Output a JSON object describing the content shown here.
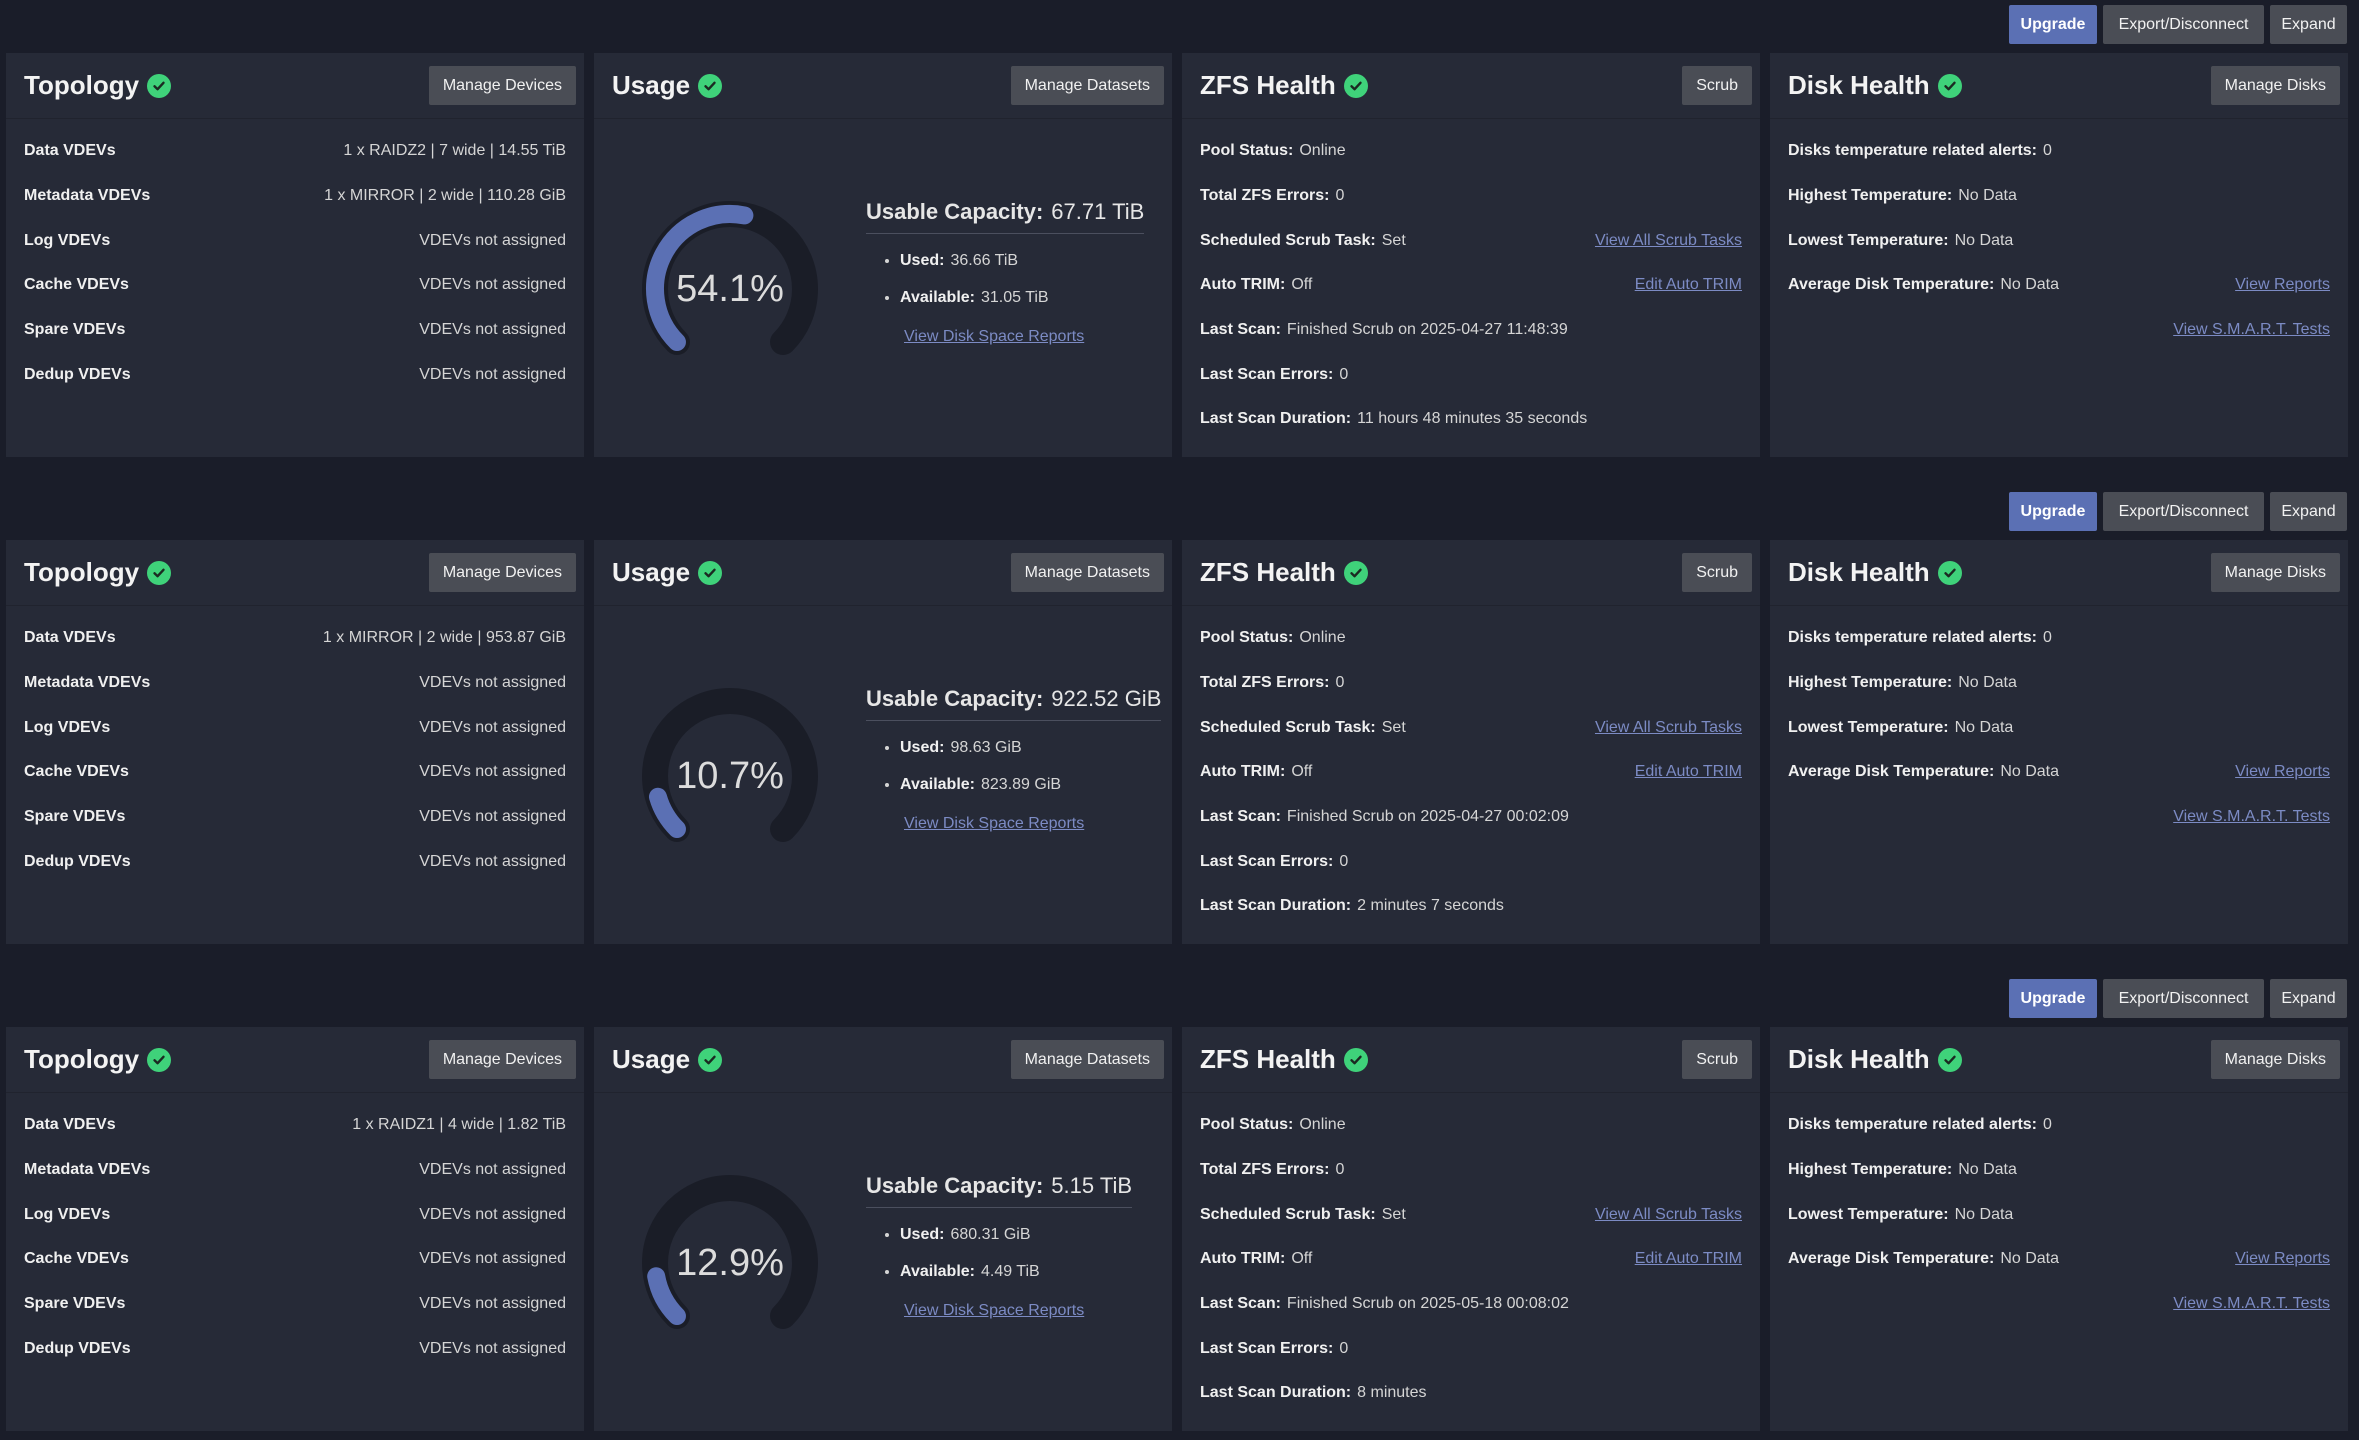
{
  "actions": {
    "upgrade": "Upgrade",
    "export": "Export/Disconnect",
    "expand": "Expand"
  },
  "topology": {
    "title": "Topology",
    "button": "Manage Devices",
    "labels": [
      "Data VDEVs",
      "Metadata VDEVs",
      "Log VDEVs",
      "Cache VDEVs",
      "Spare VDEVs",
      "Dedup VDEVs"
    ]
  },
  "usage": {
    "title": "Usage",
    "button": "Manage Datasets",
    "capacity_label": "Usable Capacity:",
    "used_label": "Used:",
    "available_label": "Available:",
    "reports_link": "View Disk Space Reports"
  },
  "zfs": {
    "title": "ZFS Health",
    "button": "Scrub",
    "pool_status_label": "Pool Status:",
    "errors_label": "Total ZFS Errors:",
    "scrub_task_label": "Scheduled Scrub Task:",
    "auto_trim_label": "Auto TRIM:",
    "last_scan_label": "Last Scan:",
    "last_scan_errors_label": "Last Scan Errors:",
    "duration_label": "Last Scan Duration:",
    "view_scrub_tasks": "View All Scrub Tasks",
    "edit_auto_trim": "Edit Auto TRIM"
  },
  "disk": {
    "title": "Disk Health",
    "button": "Manage Disks",
    "alerts_label": "Disks temperature related alerts:",
    "highest_label": "Highest Temperature:",
    "lowest_label": "Lowest Temperature:",
    "average_label": "Average Disk Temperature:",
    "view_reports": "View Reports",
    "view_smart": "View S.M.A.R.T. Tests"
  },
  "colors": {
    "accent": "#5b70b4",
    "ok": "#3fd27a",
    "card": "#262a37",
    "bg": "#1a1d29"
  },
  "pools": [
    {
      "topology": [
        "1 x RAIDZ2 | 7 wide | 14.55 TiB",
        "1 x MIRROR | 2 wide | 110.28 GiB",
        "VDEVs not assigned",
        "VDEVs not assigned",
        "VDEVs not assigned",
        "VDEVs not assigned"
      ],
      "usage": {
        "percent": 54.1,
        "percent_label": "54.1%",
        "capacity": "67.71 TiB",
        "used": "36.66 TiB",
        "available": "31.05 TiB"
      },
      "zfs": {
        "pool_status": "Online",
        "errors": "0",
        "scrub_task": "Set",
        "auto_trim": "Off",
        "last_scan": "Finished Scrub on 2025-04-27 11:48:39",
        "last_scan_errors": "0",
        "duration": "11 hours 48 minutes 35 seconds"
      },
      "disk": {
        "alerts": "0",
        "highest": "No Data",
        "lowest": "No Data",
        "average": "No Data"
      }
    },
    {
      "topology": [
        "1 x MIRROR | 2 wide | 953.87 GiB",
        "VDEVs not assigned",
        "VDEVs not assigned",
        "VDEVs not assigned",
        "VDEVs not assigned",
        "VDEVs not assigned"
      ],
      "usage": {
        "percent": 10.7,
        "percent_label": "10.7%",
        "capacity": "922.52 GiB",
        "used": "98.63 GiB",
        "available": "823.89 GiB"
      },
      "zfs": {
        "pool_status": "Online",
        "errors": "0",
        "scrub_task": "Set",
        "auto_trim": "Off",
        "last_scan": "Finished Scrub on 2025-04-27 00:02:09",
        "last_scan_errors": "0",
        "duration": "2 minutes 7 seconds"
      },
      "disk": {
        "alerts": "0",
        "highest": "No Data",
        "lowest": "No Data",
        "average": "No Data"
      }
    },
    {
      "topology": [
        "1 x RAIDZ1 | 4 wide | 1.82 TiB",
        "VDEVs not assigned",
        "VDEVs not assigned",
        "VDEVs not assigned",
        "VDEVs not assigned",
        "VDEVs not assigned"
      ],
      "usage": {
        "percent": 12.9,
        "percent_label": "12.9%",
        "capacity": "5.15 TiB",
        "used": "680.31 GiB",
        "available": "4.49 TiB"
      },
      "zfs": {
        "pool_status": "Online",
        "errors": "0",
        "scrub_task": "Set",
        "auto_trim": "Off",
        "last_scan": "Finished Scrub on 2025-05-18 00:08:02",
        "last_scan_errors": "0",
        "duration": "8 minutes"
      },
      "disk": {
        "alerts": "0",
        "highest": "No Data",
        "lowest": "No Data",
        "average": "No Data"
      }
    }
  ]
}
